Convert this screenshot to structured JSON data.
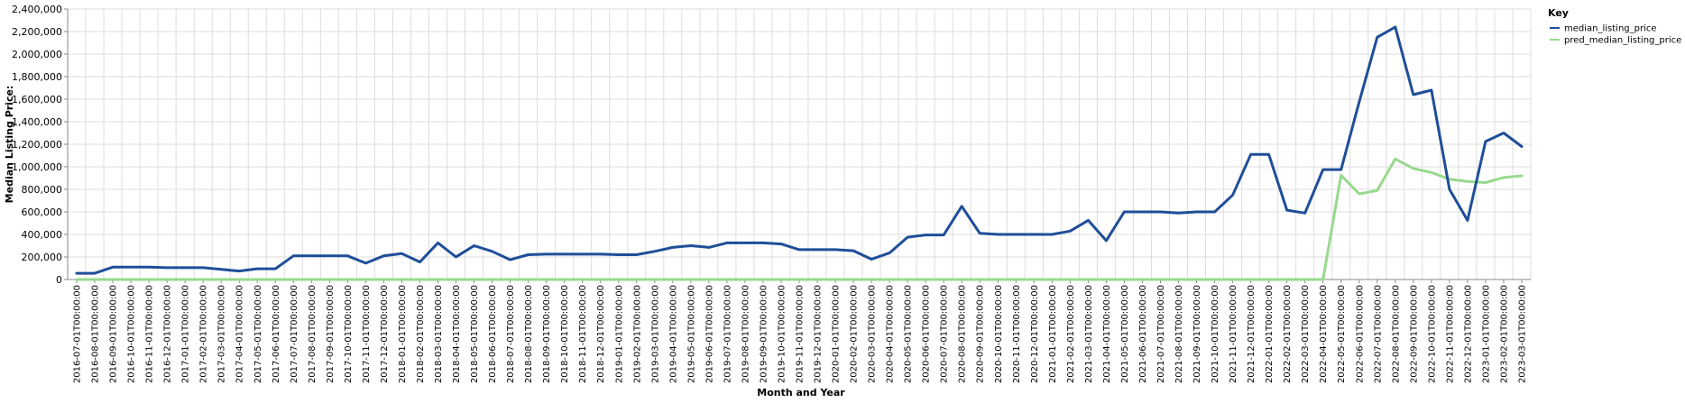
{
  "chart_data": {
    "type": "line",
    "xlabel": "Month and Year",
    "ylabel": "Median Listing Price:",
    "ylim": [
      0,
      2400000
    ],
    "y_ticks": [
      "0",
      "200,000",
      "400,000",
      "600,000",
      "800,000",
      "1,000,000",
      "1,200,000",
      "1,400,000",
      "1,600,000",
      "1,800,000",
      "2,000,000",
      "2,200,000",
      "2,400,000"
    ],
    "y_tick_values": [
      0,
      200000,
      400000,
      600000,
      800000,
      1000000,
      1200000,
      1400000,
      1600000,
      1800000,
      2000000,
      2200000,
      2400000
    ],
    "grid": true,
    "legend": {
      "title": "Key",
      "placement": "top-right"
    },
    "categories": [
      "2016-07-01T00:00:00",
      "2016-08-01T00:00:00",
      "2016-09-01T00:00:00",
      "2016-10-01T00:00:00",
      "2016-11-01T00:00:00",
      "2016-12-01T00:00:00",
      "2017-01-01T00:00:00",
      "2017-02-01T00:00:00",
      "2017-03-01T00:00:00",
      "2017-04-01T00:00:00",
      "2017-05-01T00:00:00",
      "2017-06-01T00:00:00",
      "2017-07-01T00:00:00",
      "2017-08-01T00:00:00",
      "2017-09-01T00:00:00",
      "2017-10-01T00:00:00",
      "2017-11-01T00:00:00",
      "2017-12-01T00:00:00",
      "2018-01-01T00:00:00",
      "2018-02-01T00:00:00",
      "2018-03-01T00:00:00",
      "2018-04-01T00:00:00",
      "2018-05-01T00:00:00",
      "2018-06-01T00:00:00",
      "2018-07-01T00:00:00",
      "2018-08-01T00:00:00",
      "2018-09-01T00:00:00",
      "2018-10-01T00:00:00",
      "2018-11-01T00:00:00",
      "2018-12-01T00:00:00",
      "2019-01-01T00:00:00",
      "2019-02-01T00:00:00",
      "2019-03-01T00:00:00",
      "2019-04-01T00:00:00",
      "2019-05-01T00:00:00",
      "2019-06-01T00:00:00",
      "2019-07-01T00:00:00",
      "2019-08-01T00:00:00",
      "2019-09-01T00:00:00",
      "2019-10-01T00:00:00",
      "2019-11-01T00:00:00",
      "2019-12-01T00:00:00",
      "2020-01-01T00:00:00",
      "2020-02-01T00:00:00",
      "2020-03-01T00:00:00",
      "2020-04-01T00:00:00",
      "2020-05-01T00:00:00",
      "2020-06-01T00:00:00",
      "2020-07-01T00:00:00",
      "2020-08-01T00:00:00",
      "2020-09-01T00:00:00",
      "2020-10-01T00:00:00",
      "2020-11-01T00:00:00",
      "2020-12-01T00:00:00",
      "2021-01-01T00:00:00",
      "2021-02-01T00:00:00",
      "2021-03-01T00:00:00",
      "2021-04-01T00:00:00",
      "2021-05-01T00:00:00",
      "2021-06-01T00:00:00",
      "2021-07-01T00:00:00",
      "2021-08-01T00:00:00",
      "2021-09-01T00:00:00",
      "2021-10-01T00:00:00",
      "2021-11-01T00:00:00",
      "2021-12-01T00:00:00",
      "2022-01-01T00:00:00",
      "2022-02-01T00:00:00",
      "2022-03-01T00:00:00",
      "2022-04-01T00:00:00",
      "2022-05-01T00:00:00",
      "2022-06-01T00:00:00",
      "2022-07-01T00:00:00",
      "2022-08-01T00:00:00",
      "2022-09-01T00:00:00",
      "2022-10-01T00:00:00",
      "2022-11-01T00:00:00",
      "2022-12-01T00:00:00",
      "2023-01-01T00:00:00",
      "2023-02-01T00:00:00",
      "2023-03-01T00:00:00"
    ],
    "series": [
      {
        "name": "median_listing_price",
        "color": "#1f4e99",
        "values": [
          55000,
          55000,
          110000,
          110000,
          110000,
          105000,
          105000,
          105000,
          90000,
          75000,
          95000,
          95000,
          210000,
          210000,
          210000,
          210000,
          145000,
          210000,
          230000,
          155000,
          325000,
          200000,
          300000,
          250000,
          175000,
          220000,
          225000,
          225000,
          225000,
          225000,
          220000,
          220000,
          250000,
          285000,
          300000,
          285000,
          325000,
          325000,
          325000,
          315000,
          265000,
          265000,
          265000,
          255000,
          180000,
          235000,
          375000,
          395000,
          395000,
          650000,
          410000,
          400000,
          400000,
          400000,
          400000,
          430000,
          525000,
          345000,
          600000,
          600000,
          600000,
          590000,
          600000,
          600000,
          750000,
          1110000,
          1110000,
          615000,
          590000,
          975000,
          975000,
          1575000,
          2150000,
          2240000,
          1640000,
          1680000,
          800000,
          525000,
          1225000,
          1300000,
          1180000
        ]
      },
      {
        "name": "pred_median_listing_price",
        "color": "#98d98e",
        "values": [
          0,
          0,
          0,
          0,
          0,
          0,
          0,
          0,
          0,
          0,
          0,
          0,
          0,
          0,
          0,
          0,
          0,
          0,
          0,
          0,
          0,
          0,
          0,
          0,
          0,
          0,
          0,
          0,
          0,
          0,
          0,
          0,
          0,
          0,
          0,
          0,
          0,
          0,
          0,
          0,
          0,
          0,
          0,
          0,
          0,
          0,
          0,
          0,
          0,
          0,
          0,
          0,
          0,
          0,
          0,
          0,
          0,
          0,
          0,
          0,
          0,
          0,
          0,
          0,
          0,
          0,
          0,
          0,
          0,
          0,
          925000,
          760000,
          790000,
          1070000,
          985000,
          950000,
          890000,
          870000,
          860000,
          905000,
          920000
        ]
      }
    ]
  }
}
